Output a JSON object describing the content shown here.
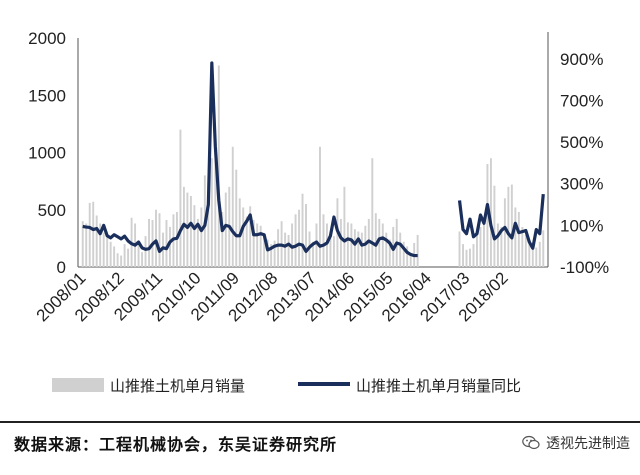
{
  "chart_data": {
    "type": "bar+line",
    "title": "",
    "xlabel": "",
    "ylabel": "",
    "x_tick_labels": [
      "2008/01",
      "2008/12",
      "2009/11",
      "2010/10",
      "2011/09",
      "2012/08",
      "2013/07",
      "2014/06",
      "2015/05",
      "2016/04",
      "2017/03",
      "2018/02"
    ],
    "y_left": {
      "range": [
        0,
        2000
      ],
      "ticks": [
        "0",
        "500",
        "1000",
        "1500",
        "2000"
      ]
    },
    "y_right": {
      "range": [
        -100,
        1000
      ],
      "ticks": [
        "-100%",
        "100%",
        "300%",
        "500%",
        "700%",
        "900%"
      ]
    },
    "legend_position": "bottom",
    "series": [
      {
        "name": "山推推土机单月销量",
        "axis": "left",
        "kind": "bar",
        "color": "#d0d0d0",
        "values": [
          400,
          380,
          560,
          570,
          450,
          380,
          300,
          280,
          220,
          180,
          120,
          100,
          200,
          160,
          430,
          380,
          200,
          130,
          270,
          420,
          410,
          500,
          470,
          300,
          410,
          350,
          460,
          480,
          1200,
          700,
          650,
          620,
          540,
          420,
          520,
          800,
          600,
          950,
          1000,
          1760,
          480,
          650,
          700,
          1050,
          850,
          600,
          520,
          440,
          530,
          410,
          380,
          360,
          270,
          240,
          200,
          230,
          330,
          400,
          300,
          280,
          380,
          460,
          500,
          640,
          550,
          310,
          220,
          380,
          1050,
          460,
          380,
          260,
          270,
          600,
          420,
          700,
          390,
          380,
          330,
          310,
          300,
          360,
          420,
          950,
          470,
          420,
          380,
          300,
          240,
          350,
          420,
          300,
          220,
          180,
          120,
          210,
          280
        ],
        "values_after_gap": [
          310,
          200,
          150,
          160,
          200,
          280,
          350,
          420,
          900,
          950,
          710,
          380,
          350,
          600,
          700,
          720,
          520,
          480,
          350,
          280,
          200,
          180,
          170,
          220,
          320
        ]
      },
      {
        "name": "山推推土机单月销量同比",
        "axis": "right",
        "kind": "line",
        "color": "#1b2f5c",
        "values": [
          95,
          92,
          90,
          80,
          85,
          60,
          100,
          50,
          40,
          55,
          45,
          35,
          48,
          25,
          12,
          5,
          20,
          -8,
          -15,
          -12,
          10,
          25,
          -25,
          -8,
          -12,
          20,
          35,
          38,
          75,
          105,
          90,
          110,
          85,
          105,
          75,
          100,
          200,
          880,
          480,
          220,
          75,
          100,
          95,
          70,
          50,
          50,
          95,
          120,
          150,
          55,
          55,
          60,
          55,
          -18,
          -10,
          0,
          5,
          5,
          0,
          10,
          -5,
          0,
          10,
          5,
          -25,
          -5,
          10,
          20,
          0,
          5,
          15,
          50,
          140,
          75,
          40,
          25,
          35,
          30,
          10,
          35,
          5,
          10,
          25,
          15,
          5,
          35,
          40,
          30,
          15,
          -15,
          15,
          10,
          -10,
          -30,
          -40,
          -45,
          -45
        ],
        "values_after_gap": [
          220,
          80,
          60,
          130,
          45,
          60,
          150,
          110,
          200,
          100,
          35,
          50,
          75,
          90,
          60,
          40,
          110,
          65,
          70,
          75,
          20,
          -10,
          80,
          60,
          250
        ]
      }
    ]
  },
  "legend": {
    "bar_label": "山推推土机单月销量",
    "line_label": "山推推土机单月销量同比"
  },
  "footer": {
    "source": "数据来源：工程机械协会，东吴证券研究所",
    "brand": "透视先进制造",
    "brand_icon": "wechat-icon"
  }
}
